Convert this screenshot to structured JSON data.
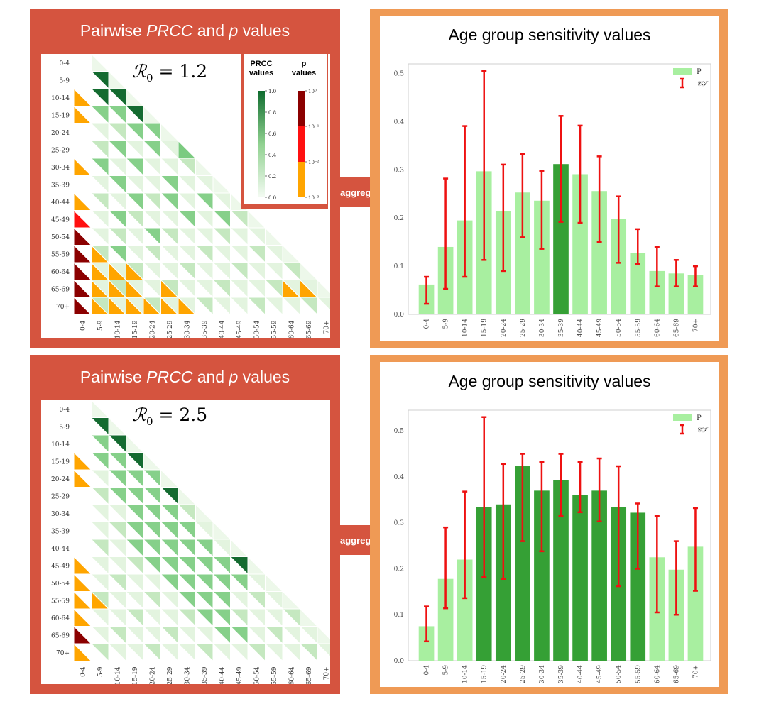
{
  "panels": [
    {
      "matrix": {
        "title_pre": "Pairwise ",
        "title_prcc": "PRCC",
        "title_mid": " and ",
        "title_p": "p",
        "title_post": " values",
        "r0_label": "ℛ",
        "r0_sub": "0",
        "r0_value": " = 1.2"
      },
      "arrow_label": "aggregation",
      "chart_title": "Age group sensitivity values"
    },
    {
      "matrix": {
        "title_pre": "Pairwise ",
        "title_prcc": "PRCC",
        "title_mid": " and ",
        "title_p": "p",
        "title_post": " values",
        "r0_label": "ℛ",
        "r0_sub": "0",
        "r0_value": " = 2.5"
      },
      "arrow_label": "aggregation",
      "chart_title": "Age group sensitivity values"
    }
  ],
  "legend_box": {
    "prcc_title_1": "PRCC",
    "prcc_title_2": "values",
    "p_title_1": "p",
    "p_title_2": "values",
    "prcc_ticks": [
      "1.0",
      "0.8",
      "0.6",
      "0.4",
      "0.2",
      "0.0"
    ],
    "p_ticks": [
      "10⁰",
      "10⁻¹",
      "10⁻²",
      "10⁻³"
    ]
  },
  "colors": {
    "panel_left": "#d5543f",
    "panel_right": "#ef9a55",
    "bar_light": "#a8efa0",
    "bar_dark": "#35a035",
    "error": "#ee1111",
    "p_dark": "#8b0000",
    "p_red": "#ff1010",
    "p_orange": "#ffa500"
  },
  "chart_data": [
    {
      "type": "bar",
      "title": "Age group sensitivity values",
      "categories": [
        "0-4",
        "5-9",
        "10-14",
        "15-19",
        "20-24",
        "25-29",
        "30-34",
        "35-39",
        "40-44",
        "45-49",
        "50-54",
        "55-59",
        "60-64",
        "65-69",
        "70+"
      ],
      "values": [
        0.062,
        0.14,
        0.195,
        0.297,
        0.215,
        0.253,
        0.236,
        0.312,
        0.291,
        0.256,
        0.198,
        0.127,
        0.09,
        0.085,
        0.082
      ],
      "ci_low": [
        0.022,
        0.053,
        0.078,
        0.113,
        0.09,
        0.16,
        0.136,
        0.192,
        0.19,
        0.15,
        0.107,
        0.105,
        0.058,
        0.058,
        0.058
      ],
      "ci_high": [
        0.078,
        0.282,
        0.391,
        0.505,
        0.311,
        0.333,
        0.298,
        0.412,
        0.392,
        0.328,
        0.245,
        0.177,
        0.14,
        0.113,
        0.1
      ],
      "highlight": [
        false,
        false,
        false,
        false,
        false,
        false,
        false,
        true,
        false,
        false,
        false,
        false,
        false,
        false,
        false
      ],
      "ylim": [
        0,
        0.52
      ],
      "yticks": [
        "0.0",
        "0.1",
        "0.2",
        "0.3",
        "0.4",
        "0.5"
      ],
      "yticks_values": [
        0,
        0.1,
        0.2,
        0.3,
        0.4,
        0.5
      ],
      "legend": [
        "P",
        "𝒞ℐ"
      ]
    },
    {
      "type": "bar",
      "title": "Age group sensitivity values",
      "categories": [
        "0-4",
        "5-9",
        "10-14",
        "15-19",
        "20-24",
        "25-29",
        "30-34",
        "35-39",
        "40-44",
        "45-49",
        "50-54",
        "55-59",
        "60-64",
        "65-69",
        "70+"
      ],
      "values": [
        0.075,
        0.178,
        0.22,
        0.335,
        0.34,
        0.423,
        0.37,
        0.393,
        0.36,
        0.37,
        0.335,
        0.322,
        0.225,
        0.198,
        0.248
      ],
      "ci_low": [
        0.042,
        0.114,
        0.136,
        0.182,
        0.178,
        0.26,
        0.238,
        0.315,
        0.323,
        0.303,
        0.162,
        0.2,
        0.105,
        0.1,
        0.152
      ],
      "ci_high": [
        0.118,
        0.29,
        0.368,
        0.53,
        0.428,
        0.45,
        0.432,
        0.45,
        0.432,
        0.44,
        0.423,
        0.342,
        0.315,
        0.26,
        0.332
      ],
      "highlight": [
        false,
        false,
        false,
        true,
        true,
        true,
        true,
        true,
        true,
        true,
        true,
        true,
        false,
        false,
        false
      ],
      "ylim": [
        0,
        0.545
      ],
      "yticks": [
        "0.0",
        "0.1",
        "0.2",
        "0.3",
        "0.4",
        "0.5"
      ],
      "yticks_values": [
        0,
        0.1,
        0.2,
        0.3,
        0.4,
        0.5
      ],
      "legend": [
        "P",
        "𝒞ℐ"
      ]
    }
  ],
  "matrix_data": {
    "labels": [
      "0-4",
      "5-9",
      "10-14",
      "15-19",
      "20-24",
      "25-29",
      "30-34",
      "35-39",
      "40-44",
      "45-49",
      "50-54",
      "55-59",
      "60-64",
      "65-69",
      "70+"
    ],
    "matrices": [
      {
        "diag_p": [
          "w",
          "w",
          "o",
          "o",
          "w",
          "w",
          "o",
          "w",
          "o",
          "r",
          "d",
          "d",
          "d",
          "d",
          "d"
        ],
        "orange_cells": [
          [
            11,
            1
          ],
          [
            12,
            1
          ],
          [
            12,
            2
          ],
          [
            12,
            3
          ],
          [
            13,
            1
          ],
          [
            13,
            2
          ],
          [
            13,
            3
          ],
          [
            13,
            13
          ],
          [
            13,
            14
          ],
          [
            14,
            1
          ],
          [
            14,
            2
          ],
          [
            14,
            3
          ],
          [
            14,
            4
          ],
          [
            14,
            5
          ],
          [
            14,
            15
          ],
          [
            10,
            11
          ],
          [
            12,
            13
          ],
          [
            13,
            12
          ],
          [
            13,
            5
          ],
          [
            14,
            6
          ]
        ],
        "dark_cells": [
          [
            1,
            1
          ],
          [
            2,
            2
          ],
          [
            3,
            3
          ],
          [
            2,
            1
          ]
        ],
        "mid_cells": [
          [
            3,
            1
          ],
          [
            3,
            2
          ],
          [
            4,
            3
          ],
          [
            4,
            4
          ],
          [
            5,
            2
          ],
          [
            5,
            4
          ],
          [
            5,
            6
          ],
          [
            6,
            3
          ],
          [
            7,
            5
          ],
          [
            8,
            7
          ],
          [
            9,
            8
          ],
          [
            9,
            2
          ],
          [
            8,
            3
          ],
          [
            7,
            2
          ],
          [
            6,
            1
          ],
          [
            10,
            4
          ],
          [
            11,
            2
          ],
          [
            8,
            5
          ],
          [
            9,
            6
          ]
        ]
      },
      {
        "diag_p": [
          "w",
          "w",
          "w",
          "o",
          "o",
          "w",
          "w",
          "w",
          "w",
          "o",
          "o",
          "o",
          "o",
          "d",
          "o"
        ],
        "orange_cells": [
          [
            11,
            1
          ]
        ],
        "dark_cells": [
          [
            1,
            1
          ],
          [
            2,
            2
          ],
          [
            3,
            3
          ],
          [
            5,
            5
          ],
          [
            9,
            9
          ]
        ],
        "mid_cells": [
          [
            2,
            1
          ],
          [
            3,
            1
          ],
          [
            3,
            2
          ],
          [
            4,
            2
          ],
          [
            4,
            3
          ],
          [
            4,
            4
          ],
          [
            5,
            2
          ],
          [
            5,
            3
          ],
          [
            5,
            4
          ],
          [
            6,
            3
          ],
          [
            6,
            4
          ],
          [
            6,
            5
          ],
          [
            7,
            3
          ],
          [
            7,
            4
          ],
          [
            7,
            5
          ],
          [
            7,
            6
          ],
          [
            8,
            3
          ],
          [
            8,
            4
          ],
          [
            8,
            5
          ],
          [
            8,
            6
          ],
          [
            8,
            7
          ],
          [
            9,
            4
          ],
          [
            9,
            5
          ],
          [
            9,
            6
          ],
          [
            9,
            7
          ],
          [
            9,
            8
          ],
          [
            10,
            5
          ],
          [
            10,
            6
          ],
          [
            10,
            7
          ],
          [
            10,
            8
          ],
          [
            10,
            9
          ],
          [
            11,
            6
          ],
          [
            11,
            7
          ],
          [
            11,
            8
          ],
          [
            12,
            7
          ],
          [
            12,
            8
          ],
          [
            13,
            8
          ],
          [
            13,
            9
          ]
        ]
      }
    ]
  }
}
